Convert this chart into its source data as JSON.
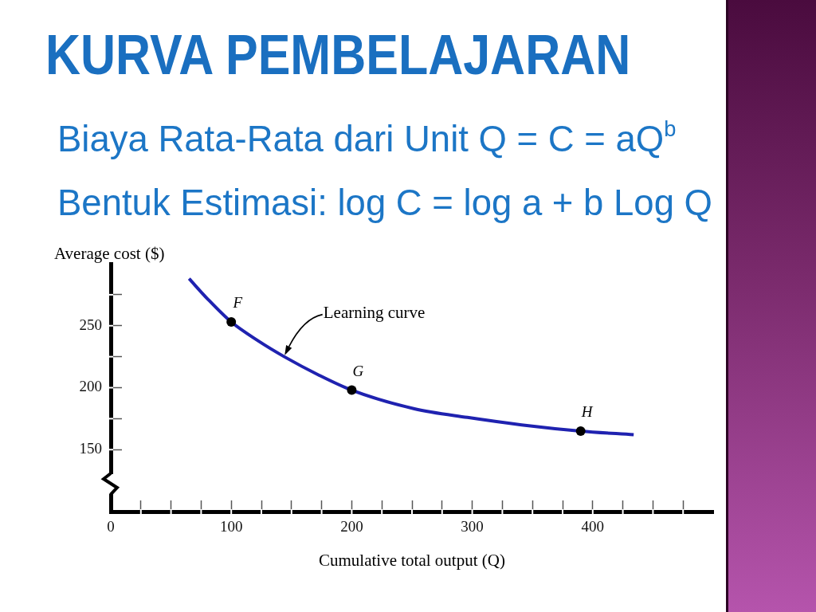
{
  "chart_data": {
    "type": "line",
    "title": "KURVA PEMBELAJARAN",
    "subtitle": "Biaya Rata-Rata dari Unit Q = C = aQ$^{b}$",
    "xlabel": "Cumulative total output (Q)",
    "ylabel": "Average cost ($)",
    "x": [
      65,
      80,
      100,
      122,
      144,
      173,
      200,
      252,
      296,
      341,
      390,
      434
    ],
    "series": [
      {
        "color": "#1f22b0",
        "marker": "none",
        "values": [
          288,
          272,
          253,
          238,
          225,
          210,
          198,
          183,
          176,
          170,
          165,
          162
        ]
      },
      {
        "type": "scatter",
        "color": "#000000",
        "marker": "circle",
        "x": [
          100,
          200,
          390
        ],
        "values": [
          253,
          198,
          165
        ]
      }
    ],
    "xlim": [
      0,
      500
    ],
    "xticks": [
      0,
      {
        "value": 25,
        "label": null
      },
      {
        "value": 50,
        "label": null
      },
      {
        "value": 75,
        "label": null
      },
      100,
      {
        "value": 125,
        "label": null
      },
      {
        "value": 150,
        "label": null
      },
      {
        "value": 175,
        "label": null
      },
      200,
      {
        "value": 225,
        "label": null
      },
      {
        "value": 250,
        "label": null
      },
      {
        "value": 275,
        "label": null
      },
      300,
      {
        "value": 325,
        "label": null
      },
      {
        "value": 350,
        "label": null
      },
      {
        "value": 375,
        "label": null
      },
      400,
      {
        "value": 425,
        "label": null
      },
      {
        "value": 450,
        "label": null
      },
      {
        "value": 475,
        "label": null
      }
    ],
    "ylim": [
      100,
      300
    ],
    "yticks": [
      150,
      {
        "value": 175,
        "label": null
      },
      200,
      {
        "value": 225,
        "label": null
      },
      250,
      {
        "value": 275,
        "label": null
      }
    ],
    "grid": false,
    "legend": false,
    "annotations": [
      "Bentuk Estimasi: log C = log a + b Log Q",
      "Learning curve",
      {
        "text": "F",
        "x": 100,
        "y": 253
      },
      {
        "text": "G",
        "x": 200,
        "y": 198
      },
      {
        "text": "H",
        "x": 390,
        "y": 165
      }
    ]
  }
}
